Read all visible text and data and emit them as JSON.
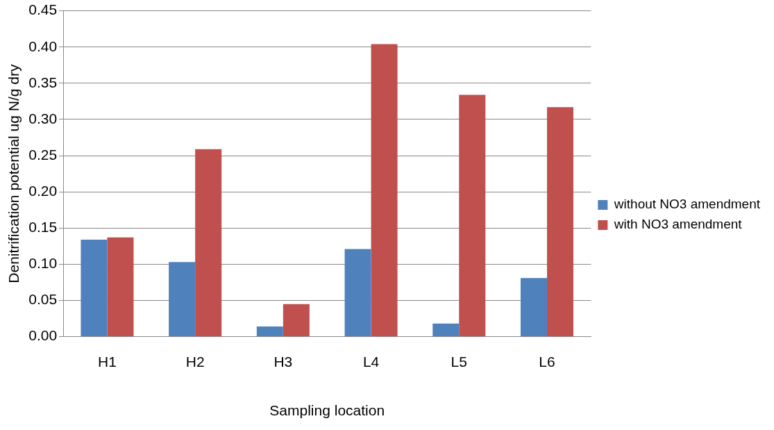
{
  "chart_data": {
    "type": "bar",
    "xlabel": "Sampling location",
    "ylabel": "Denitrification potential ug N/g dry",
    "categories": [
      "H1",
      "H2",
      "H3",
      "L4",
      "L5",
      "L6"
    ],
    "series": [
      {
        "name": "without NO3 amendment",
        "color": "#4f81bd",
        "values": [
          0.134,
          0.103,
          0.014,
          0.121,
          0.018,
          0.081
        ]
      },
      {
        "name": "with NO3 amendment",
        "color": "#c0504d",
        "values": [
          0.137,
          0.259,
          0.045,
          0.404,
          0.334,
          0.317
        ]
      }
    ],
    "ylim": [
      0,
      0.45
    ],
    "yticks": [
      {
        "value": 0,
        "label": "0.00"
      },
      0.05,
      {
        "value": 0.1,
        "label": "0.10"
      },
      0.15,
      {
        "value": 0.2,
        "label": "0.20"
      },
      0.25,
      {
        "value": 0.3,
        "label": "0.30"
      },
      0.35,
      {
        "value": 0.4,
        "label": "0.40"
      },
      0.45
    ],
    "grid": "y",
    "legend": "right"
  }
}
